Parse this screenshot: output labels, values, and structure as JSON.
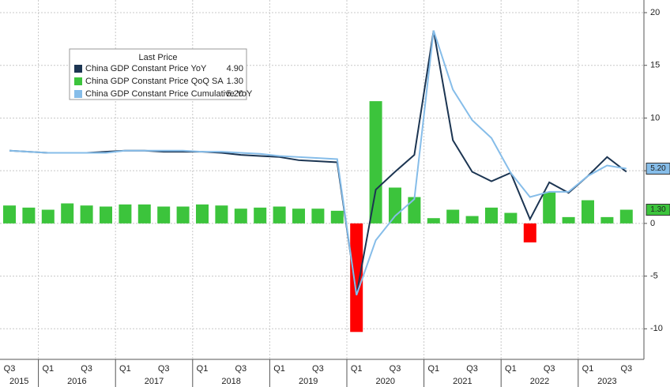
{
  "chart_data": {
    "type": "bar_line",
    "legend_title": "Last Price",
    "categories": [
      "Q3",
      null,
      "Q1",
      null,
      "Q3",
      null,
      "Q1",
      null,
      "Q3",
      null,
      "Q1",
      null,
      "Q3",
      null,
      "Q1",
      null,
      "Q3",
      null,
      "Q1",
      null,
      "Q3",
      null,
      "Q1",
      null,
      "Q3",
      null,
      "Q1",
      null,
      "Q3",
      null,
      "Q1",
      null,
      "Q3"
    ],
    "years": [
      "2015",
      "2016",
      "2017",
      "2018",
      "2019",
      "2020",
      "2021",
      "2022",
      "2023"
    ],
    "series": [
      {
        "name": "China GDP Constant Price YoY",
        "last": "4.90",
        "kind": "line",
        "color": "#1c3552",
        "values": [
          6.9,
          6.8,
          6.7,
          6.7,
          6.7,
          6.8,
          6.9,
          6.9,
          6.8,
          6.8,
          6.8,
          6.7,
          6.5,
          6.4,
          6.3,
          6.0,
          5.9,
          5.8,
          -6.8,
          3.2,
          4.9,
          6.5,
          18.3,
          7.9,
          4.9,
          4.0,
          4.8,
          0.4,
          3.9,
          2.9,
          4.5,
          6.3,
          4.9
        ]
      },
      {
        "name": "China GDP Constant Price QoQ SA",
        "last": "1.30",
        "kind": "bar",
        "color": "#3cc43c",
        "negative_color": "#ff0000",
        "values": [
          1.7,
          1.5,
          1.3,
          1.9,
          1.7,
          1.6,
          1.8,
          1.8,
          1.6,
          1.6,
          1.8,
          1.7,
          1.4,
          1.5,
          1.6,
          1.4,
          1.4,
          1.2,
          -10.3,
          11.6,
          3.4,
          2.5,
          0.5,
          1.3,
          0.7,
          1.5,
          1.0,
          -1.8,
          3.0,
          0.6,
          2.2,
          0.6,
          1.3
        ]
      },
      {
        "name": "China GDP Constant Price Cumulative YoY",
        "last": "5.20",
        "kind": "line",
        "color": "#86bde9",
        "values": [
          6.9,
          6.8,
          6.7,
          6.7,
          6.7,
          6.7,
          6.9,
          6.9,
          6.9,
          6.9,
          6.8,
          6.8,
          6.7,
          6.6,
          6.4,
          6.3,
          6.2,
          6.1,
          -6.8,
          -1.6,
          0.7,
          2.3,
          18.3,
          12.7,
          9.8,
          8.1,
          4.8,
          2.5,
          3.0,
          3.0,
          4.5,
          5.5,
          5.2
        ]
      }
    ],
    "ylim": [
      -12.9,
      21.2
    ],
    "yticks": [
      -10,
      -5,
      0,
      5,
      10,
      15,
      20
    ],
    "grid": true
  }
}
